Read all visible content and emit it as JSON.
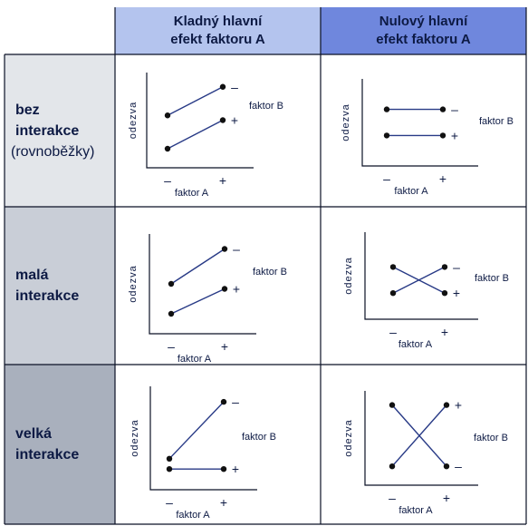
{
  "colors": {
    "header_a_bg": "#b4c4ee",
    "header_b_bg": "#6f87dd",
    "row1_bg": "#e3e6ea",
    "row2_bg": "#c9ced7",
    "row3_bg": "#a9b0bd",
    "text": "#0d1a44",
    "lines": "#283a86",
    "frame": "#0b1126"
  },
  "headers": {
    "col_a": "Kladný hlavní\nefekt faktoru A",
    "col_b": "Nulový hlavní\nefekt faktoru A"
  },
  "rows": [
    {
      "line1": "bez",
      "line2": "interakce",
      "line3": "(rovnoběžky)"
    },
    {
      "line1": "malá",
      "line2": "interakce"
    },
    {
      "line1": "velká",
      "line2": "interakce"
    }
  ],
  "plot_labels": {
    "ylabel": "odezva",
    "xlabel": "faktor A",
    "factor_b": "faktor B",
    "minus": "–",
    "plus": "+"
  },
  "chart_data": [
    {
      "type": "line",
      "title": "bez interakce / kladný hlavní efekt",
      "x": [
        "–",
        "+"
      ],
      "series": [
        {
          "name": "–",
          "values": [
            0.55,
            0.85
          ]
        },
        {
          "name": "+",
          "values": [
            0.2,
            0.5
          ]
        }
      ]
    },
    {
      "type": "line",
      "title": "bez interakce / nulový hlavní efekt",
      "x": [
        "–",
        "+"
      ],
      "series": [
        {
          "name": "–",
          "values": [
            0.65,
            0.65
          ]
        },
        {
          "name": "+",
          "values": [
            0.35,
            0.35
          ]
        }
      ]
    },
    {
      "type": "line",
      "title": "malá interakce / kladný hlavní efekt",
      "x": [
        "–",
        "+"
      ],
      "series": [
        {
          "name": "–",
          "values": [
            0.5,
            0.85
          ]
        },
        {
          "name": "+",
          "values": [
            0.2,
            0.45
          ]
        }
      ]
    },
    {
      "type": "line",
      "title": "malá interakce / nulový hlavní efekt",
      "x": [
        "–",
        "+"
      ],
      "series": [
        {
          "name": "+",
          "values": [
            0.6,
            0.3
          ]
        },
        {
          "name": "–",
          "values": [
            0.3,
            0.6
          ]
        }
      ]
    },
    {
      "type": "line",
      "title": "velká interakce / kladný hlavní efekt",
      "x": [
        "–",
        "+"
      ],
      "series": [
        {
          "name": "–",
          "values": [
            0.3,
            0.85
          ]
        },
        {
          "name": "+",
          "values": [
            0.2,
            0.2
          ]
        }
      ]
    },
    {
      "type": "line",
      "title": "velká interakce / nulový hlavní efekt",
      "x": [
        "–",
        "+"
      ],
      "series": [
        {
          "name": "+",
          "values": [
            0.2,
            0.85
          ]
        },
        {
          "name": "–",
          "values": [
            0.85,
            0.2
          ]
        }
      ]
    }
  ]
}
